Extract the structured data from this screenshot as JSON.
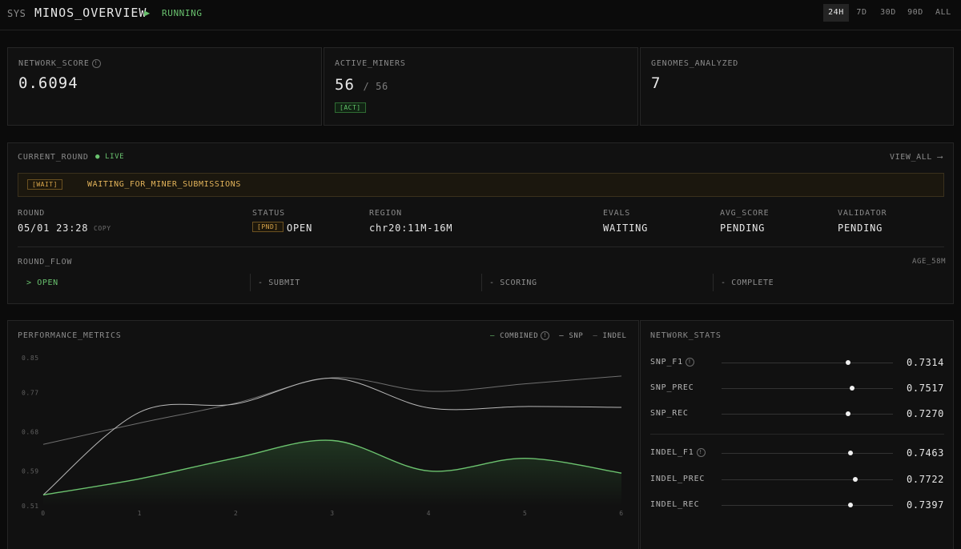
{
  "header": {
    "sys": "SYS",
    "title": "MINOS_OVERVIEW",
    "status": "RUNNING",
    "ranges": [
      "24H",
      "7D",
      "30D",
      "90D",
      "ALL"
    ],
    "active_range": "24H"
  },
  "cards": {
    "network_score": {
      "label": "NETWORK_SCORE",
      "value": "0.6094"
    },
    "active_miners": {
      "label": "ACTIVE_MINERS",
      "value": "56",
      "total": "/ 56",
      "badge": "[ACT]"
    },
    "genomes": {
      "label": "GENOMES_ANALYZED",
      "value": "7"
    }
  },
  "round": {
    "title": "CURRENT_ROUND",
    "live": "LIVE",
    "view_all": "VIEW_ALL",
    "banner_badge": "[WAIT]",
    "banner_text": "WAITING_FOR_MINER_SUBMISSIONS",
    "fields": {
      "round_label": "ROUND",
      "round_value": "05/01 23:28",
      "copy": "COPY",
      "status_label": "STATUS",
      "status_badge": "[PND]",
      "status_value": "OPEN",
      "region_label": "REGION",
      "region_value": "chr20:11M-16M",
      "evals_label": "EVALS",
      "evals_value": "WAITING",
      "avg_label": "AVG_SCORE",
      "avg_value": "PENDING",
      "validator_label": "VALIDATOR",
      "validator_value": "PENDING"
    },
    "flow_label": "ROUND_FLOW",
    "age": "AGE_58M",
    "flow": [
      "> OPEN",
      "- SUBMIT",
      "- SCORING",
      "- COMPLETE"
    ]
  },
  "performance": {
    "title": "PERFORMANCE_METRICS",
    "legend": [
      "COMBINED",
      "SNP",
      "INDEL"
    ]
  },
  "chart_data": {
    "type": "line",
    "x": [
      0,
      1,
      2,
      3,
      4,
      5,
      6
    ],
    "y_ticks": [
      "0.85",
      "0.77",
      "0.68",
      "0.59",
      "0.51"
    ],
    "ylim": [
      0.51,
      0.85
    ],
    "series": [
      {
        "name": "COMBINED",
        "color": "#6cc36f",
        "values": [
          0.535,
          0.572,
          0.62,
          0.66,
          0.59,
          0.619,
          0.585
        ]
      },
      {
        "name": "SNP",
        "color": "#b8b8b8",
        "values": [
          0.535,
          0.725,
          0.744,
          0.803,
          0.735,
          0.738,
          0.736
        ]
      },
      {
        "name": "INDEL",
        "color": "#6f6f6f",
        "values": [
          0.651,
          0.7,
          0.746,
          0.804,
          0.773,
          0.79,
          0.808
        ]
      }
    ]
  },
  "network_stats": {
    "title": "NETWORK_STATS",
    "rows": [
      {
        "label": "SNP_F1",
        "value": "0.7314",
        "frac": 0.74
      },
      {
        "label": "SNP_PREC",
        "value": "0.7517",
        "frac": 0.76
      },
      {
        "label": "SNP_REC",
        "value": "0.7270",
        "frac": 0.74
      },
      {
        "label": "INDEL_F1",
        "value": "0.7463",
        "frac": 0.75
      },
      {
        "label": "INDEL_PREC",
        "value": "0.7722",
        "frac": 0.78
      },
      {
        "label": "INDEL_REC",
        "value": "0.7397",
        "frac": 0.75
      }
    ]
  }
}
